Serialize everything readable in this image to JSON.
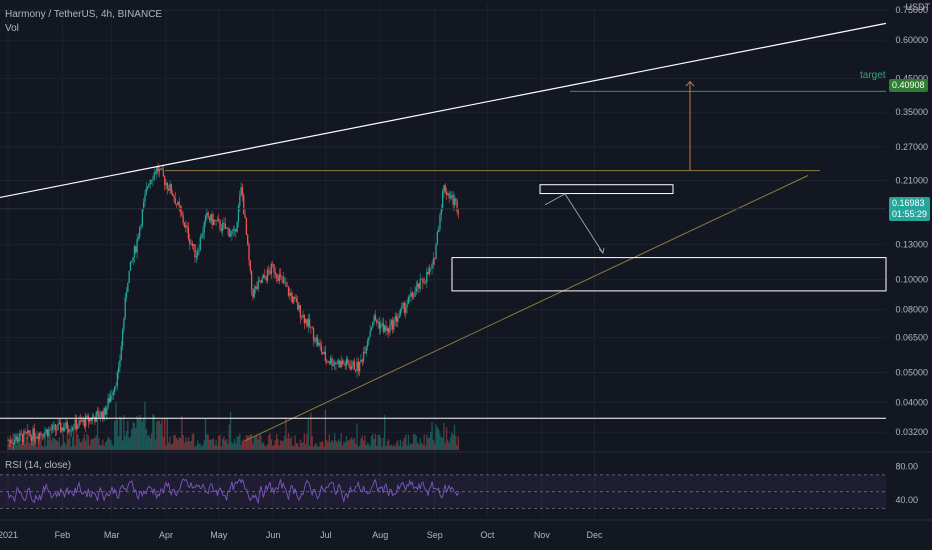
{
  "header": {
    "title": "Harmony / TetherUS, 4h, BINANCE",
    "vol_label": "Vol"
  },
  "rsi": {
    "label": "RSI (14, close)"
  },
  "currency": "USDT",
  "target_label": "target",
  "target_price": "0.40908",
  "current_price": "0.16983",
  "countdown": "01:55:29",
  "colors": {
    "up": "#26a69a",
    "down": "#ef5350",
    "rsi": "#7e57c2",
    "trend": "#ffffff",
    "support": "#8d7a3c",
    "bg": "#131722"
  },
  "chart_data": {
    "type": "candlestick",
    "title": "Harmony / TetherUS, 4h, BINANCE",
    "y_scale": "log",
    "ylim": [
      0.028,
      0.78
    ],
    "y_ticks": [
      0.75,
      0.6,
      0.45,
      0.35,
      0.27,
      0.21,
      0.13,
      0.1,
      0.08,
      0.065,
      0.05,
      0.04,
      0.032
    ],
    "x_tick_labels": [
      "2021",
      "Feb",
      "Mar",
      "Apr",
      "May",
      "Jun",
      "Jul",
      "Aug",
      "Sep",
      "Oct",
      "Nov",
      "Dec"
    ],
    "close_path": [
      {
        "date": "2021-01-01",
        "close": 0.03
      },
      {
        "date": "2021-01-20",
        "close": 0.032
      },
      {
        "date": "2021-02-10",
        "close": 0.034
      },
      {
        "date": "2021-02-25",
        "close": 0.037
      },
      {
        "date": "2021-03-05",
        "close": 0.05
      },
      {
        "date": "2021-03-10",
        "close": 0.1
      },
      {
        "date": "2021-03-15",
        "close": 0.13
      },
      {
        "date": "2021-03-22",
        "close": 0.21
      },
      {
        "date": "2021-03-27",
        "close": 0.23
      },
      {
        "date": "2021-04-05",
        "close": 0.19
      },
      {
        "date": "2021-04-18",
        "close": 0.12
      },
      {
        "date": "2021-04-24",
        "close": 0.16
      },
      {
        "date": "2021-05-10",
        "close": 0.14
      },
      {
        "date": "2021-05-14",
        "close": 0.2
      },
      {
        "date": "2021-05-20",
        "close": 0.09
      },
      {
        "date": "2021-06-01",
        "close": 0.11
      },
      {
        "date": "2021-06-22",
        "close": 0.07
      },
      {
        "date": "2021-07-01",
        "close": 0.055
      },
      {
        "date": "2021-07-20",
        "close": 0.052
      },
      {
        "date": "2021-07-28",
        "close": 0.075
      },
      {
        "date": "2021-08-05",
        "close": 0.068
      },
      {
        "date": "2021-08-20",
        "close": 0.09
      },
      {
        "date": "2021-08-31",
        "close": 0.11
      },
      {
        "date": "2021-09-06",
        "close": 0.2
      },
      {
        "date": "2021-09-15",
        "close": 0.16983
      }
    ],
    "rsi_ylim": [
      20,
      90
    ],
    "rsi_ticks": [
      80,
      40
    ],
    "rsi_band": [
      70,
      30
    ],
    "rsi_midline": 50
  }
}
